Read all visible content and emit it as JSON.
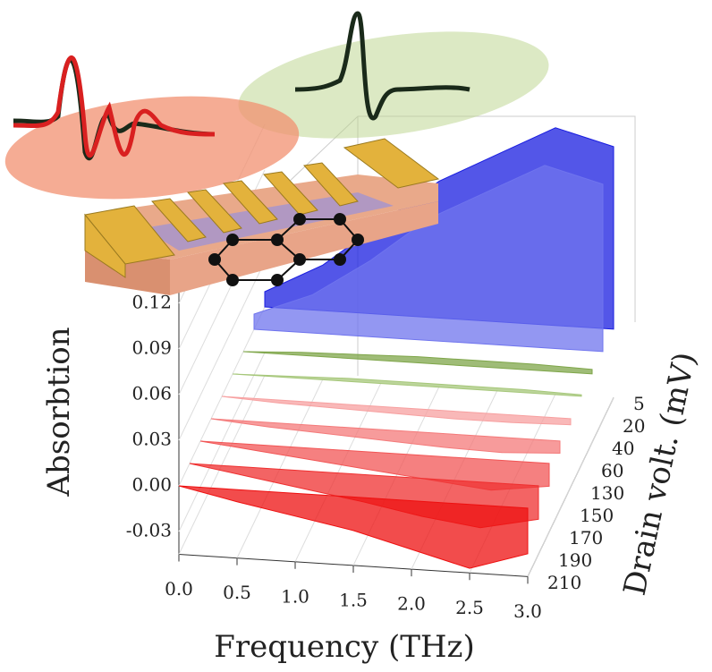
{
  "chart_data": {
    "type": "waterfall",
    "ylabel": "Absorbtion",
    "xlabel": "Frequency (THz)",
    "zlabel": "Drain volt. (mV)",
    "x": [
      0,
      0.5,
      1,
      1.5,
      2,
      2.5,
      3
    ],
    "xlim": [
      0,
      3
    ],
    "xticks": [
      {
        "value": 0,
        "label": "0.0"
      },
      0.5,
      {
        "value": 1,
        "label": "1.0"
      },
      1.5,
      {
        "value": 2,
        "label": "2.0"
      },
      2.5,
      {
        "value": 3,
        "label": "3.0"
      }
    ],
    "ylim": [
      -0.045,
      0.13
    ],
    "yticks": [
      -0.03,
      {
        "value": 0,
        "label": "0.00"
      },
      0.03,
      0.06,
      0.09,
      0.12
    ],
    "series": [
      {
        "name": "5",
        "color": "#1a1ee0",
        "values": [
          0.01,
          0.03,
          0.06,
          0.09,
          0.11,
          0.13,
          0.12
        ]
      },
      {
        "name": "20",
        "color": "#6f74ee",
        "values": [
          0.01,
          0.025,
          0.05,
          0.08,
          0.1,
          0.12,
          0.11
        ]
      },
      {
        "name": "40",
        "color": "#7fa64a",
        "values": [
          0,
          0.002,
          0.003,
          0.004,
          0.004,
          0.004,
          0.003
        ]
      },
      {
        "name": "60",
        "color": "#a6c77a",
        "values": [
          0,
          0.001,
          0.002,
          0.002,
          0.002,
          0.002,
          0.001
        ]
      },
      {
        "name": "130",
        "color": "#f7a0a0",
        "values": [
          0,
          -0.002,
          -0.003,
          -0.004,
          -0.005,
          -0.005,
          -0.004
        ]
      },
      {
        "name": "150",
        "color": "#f47a7a",
        "values": [
          0,
          -0.003,
          -0.005,
          -0.007,
          -0.009,
          -0.01,
          -0.008
        ]
      },
      {
        "name": "170",
        "color": "#f25555",
        "values": [
          0,
          -0.004,
          -0.008,
          -0.012,
          -0.016,
          -0.02,
          -0.015
        ]
      },
      {
        "name": "190",
        "color": "#ef3030",
        "values": [
          0,
          -0.006,
          -0.012,
          -0.018,
          -0.025,
          -0.03,
          -0.022
        ]
      },
      {
        "name": "210",
        "color": "#ee1010",
        "values": [
          0,
          -0.008,
          -0.015,
          -0.022,
          -0.032,
          -0.042,
          -0.03
        ]
      }
    ]
  }
}
